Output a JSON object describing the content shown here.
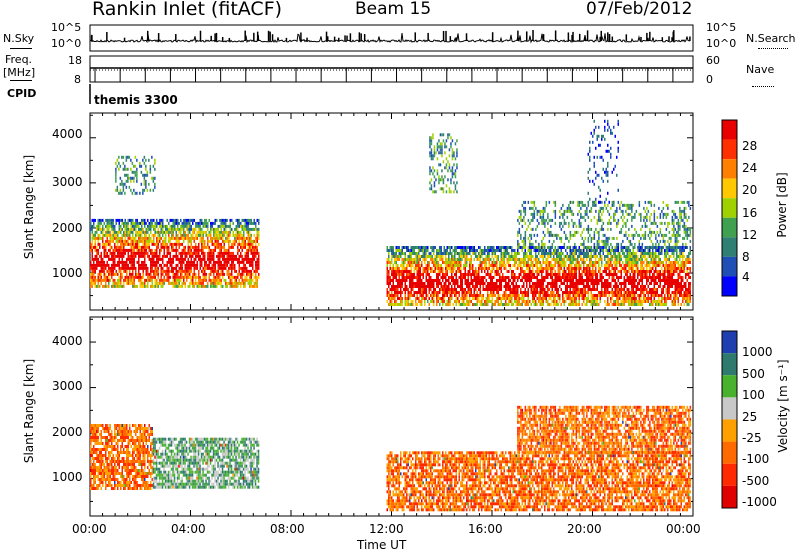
{
  "header": {
    "station": "Rankin Inlet (fitACF)",
    "beam": "Beam 15",
    "date": "07/Feb/2012"
  },
  "noise_panel": {
    "left_label": "N.Sky",
    "right_label": "N.Search",
    "left_ticks": [
      "10^5",
      "10^0"
    ],
    "right_ticks": [
      "10^5",
      "10^0"
    ]
  },
  "freq_panel": {
    "left_label_1": "Freq.",
    "left_label_2": "[MHz]",
    "right_label": "Nave",
    "left_ticks": [
      "18",
      "8"
    ],
    "right_ticks": [
      "60",
      "0"
    ]
  },
  "cpid_panel": {
    "label": "CPID",
    "program": "themis 3300"
  },
  "power_panel": {
    "ylabel": "Slant Range [km]",
    "yticks": [
      "4000",
      "3000",
      "2000",
      "1000"
    ],
    "colorbar_label": "Power [dB]",
    "colorbar_ticks": [
      "28",
      "24",
      "20",
      "16",
      "12",
      "8",
      "4"
    ]
  },
  "velocity_panel": {
    "ylabel": "Slant Range [km]",
    "yticks": [
      "4000",
      "3000",
      "2000",
      "1000"
    ],
    "colorbar_label": "Velocity [m s⁻¹]",
    "colorbar_ticks": [
      "1000",
      "500",
      "100",
      "25",
      "-25",
      "-100",
      "-500",
      "-1000"
    ]
  },
  "x_axis": {
    "label": "Time UT",
    "ticks": [
      "00:00",
      "04:00",
      "08:00",
      "12:00",
      "16:00",
      "20:00",
      "00:00"
    ]
  },
  "colors": {
    "power_scale": [
      "#0000ff",
      "#1f4fb4",
      "#2f7f73",
      "#3fa04f",
      "#9fd000",
      "#ffc800",
      "#ff8000",
      "#ff3000",
      "#e80000"
    ],
    "velocity_scale": [
      "#1f3fb0",
      "#2e7a6e",
      "#48b22e",
      "#c8c8c8",
      "#ffa000",
      "#ff6a00",
      "#ff2a00",
      "#e00000"
    ]
  },
  "chart_data": [
    {
      "type": "heatmap",
      "name": "power",
      "x_range_hours": [
        0,
        24
      ],
      "ylim_km": [
        180,
        4550
      ],
      "zlim": [
        0,
        30
      ],
      "z_unit": "dB",
      "echo_regions": [
        {
          "t": [
            0.0,
            6.7
          ],
          "range_km": [
            700,
            2200
          ],
          "z": "high",
          "note": "main near-range scatter 00-06:40 UT"
        },
        {
          "t": [
            1.0,
            2.6
          ],
          "range_km": [
            2800,
            3600
          ],
          "z": "medium"
        },
        {
          "t": [
            11.8,
            23.9
          ],
          "range_km": [
            300,
            1600
          ],
          "z": "high",
          "note": "band ascending in range"
        },
        {
          "t": [
            17.0,
            23.9
          ],
          "range_km": [
            1600,
            2600
          ],
          "z": "medium"
        },
        {
          "t": [
            13.5,
            14.6
          ],
          "range_km": [
            2800,
            4100
          ],
          "z": "medium"
        },
        {
          "t": [
            19.8,
            21.0
          ],
          "range_km": [
            2600,
            4400
          ],
          "z": "low"
        }
      ]
    },
    {
      "type": "heatmap",
      "name": "velocity",
      "x_range_hours": [
        0,
        24
      ],
      "ylim_km": [
        180,
        4550
      ],
      "zlim": [
        -1000,
        1000
      ],
      "z_unit": "m s^-1",
      "echo_regions": [
        {
          "t": [
            0.0,
            2.5
          ],
          "range_km": [
            800,
            2200
          ],
          "z": "-100 to -500"
        },
        {
          "t": [
            2.5,
            6.7
          ],
          "range_km": [
            800,
            1900
          ],
          "z": "100 to 25"
        },
        {
          "t": [
            11.8,
            23.9
          ],
          "range_km": [
            300,
            1600
          ],
          "z": "-100 to -500"
        },
        {
          "t": [
            17.0,
            23.9
          ],
          "range_km": [
            1600,
            2600
          ],
          "z": "-100 to -500"
        }
      ]
    }
  ]
}
